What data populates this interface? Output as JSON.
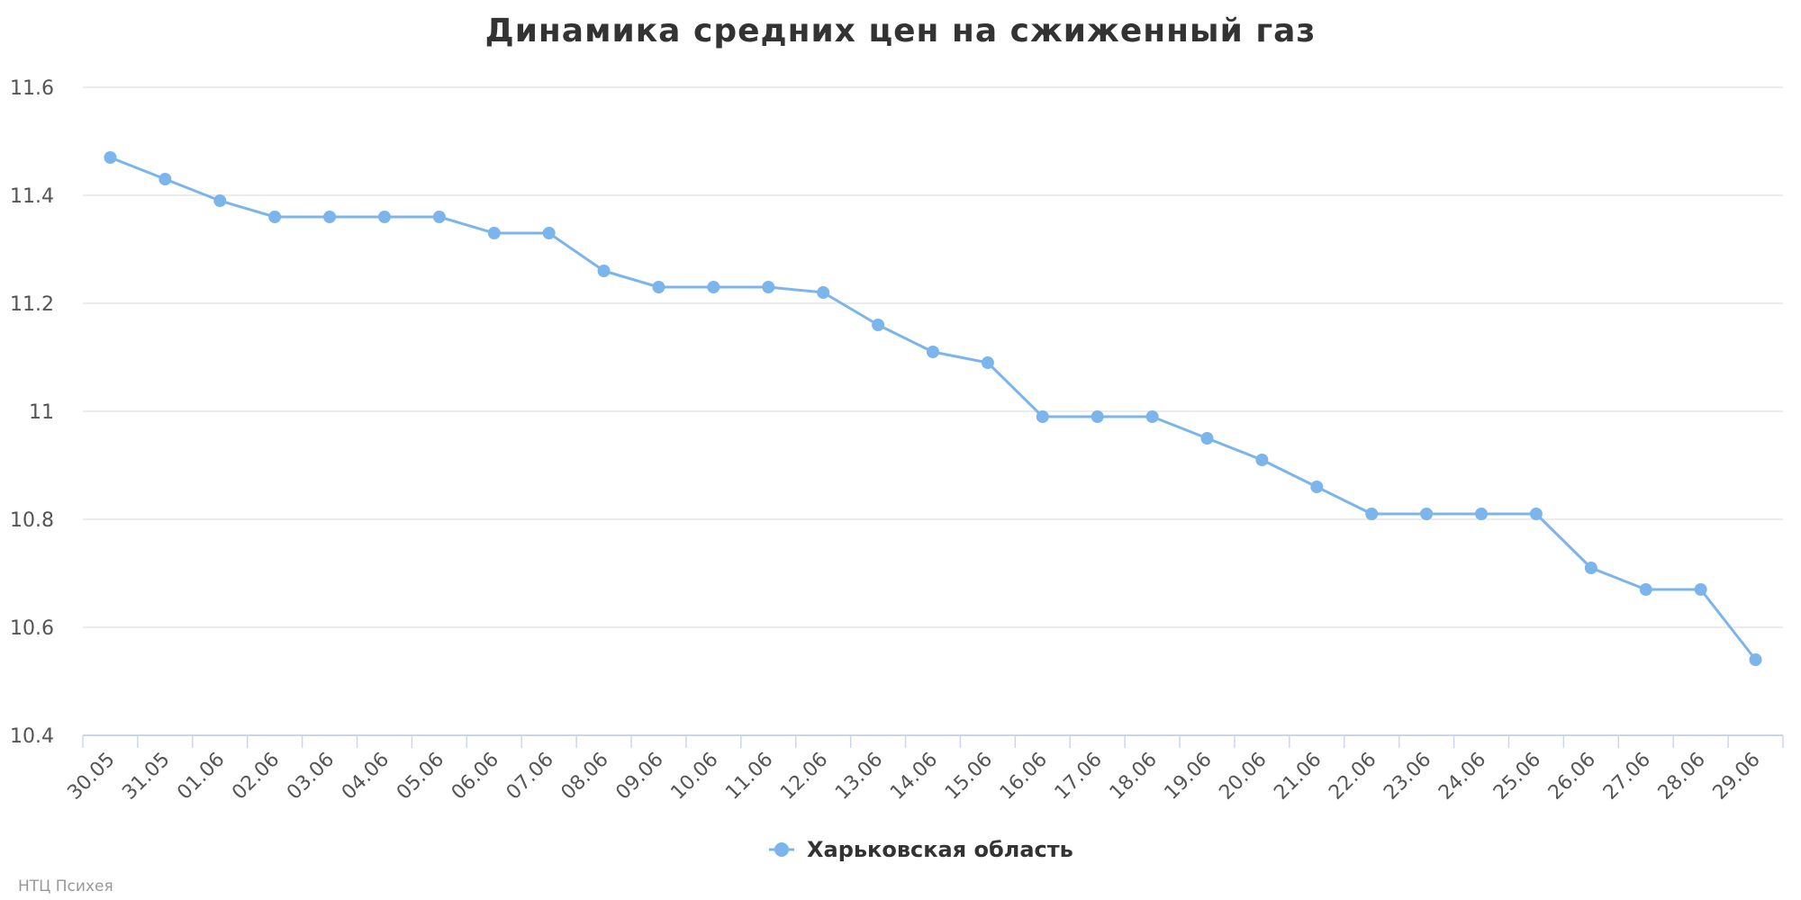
{
  "chart_data": {
    "type": "line",
    "title": "Динамика средних цен на сжиженный газ",
    "xlabel": "",
    "ylabel": "",
    "categories": [
      "30.05",
      "31.05",
      "01.06",
      "02.06",
      "03.06",
      "04.06",
      "05.06",
      "06.06",
      "07.06",
      "08.06",
      "09.06",
      "10.06",
      "11.06",
      "12.06",
      "13.06",
      "14.06",
      "15.06",
      "16.06",
      "17.06",
      "18.06",
      "19.06",
      "20.06",
      "21.06",
      "22.06",
      "23.06",
      "24.06",
      "25.06",
      "26.06",
      "27.06",
      "28.06",
      "29.06"
    ],
    "series": [
      {
        "name": "Харьковская область",
        "color": "#7cb5ec",
        "values": [
          11.47,
          11.43,
          11.39,
          11.36,
          11.36,
          11.36,
          11.36,
          11.33,
          11.33,
          11.26,
          11.23,
          11.23,
          11.23,
          11.22,
          11.16,
          11.11,
          11.09,
          10.99,
          10.99,
          10.99,
          10.95,
          10.91,
          10.86,
          10.81,
          10.81,
          10.81,
          10.81,
          10.71,
          10.67,
          10.67,
          10.54
        ]
      }
    ],
    "ylim": [
      10.4,
      11.6
    ],
    "yticks": [
      10.4,
      10.6,
      10.8,
      11,
      11.2,
      11.4,
      11.6
    ],
    "ytick_labels": [
      "10.4",
      "10.6",
      "10.8",
      "11",
      "11.2",
      "11.4",
      "11.6"
    ],
    "grid": true,
    "legend_position": "bottom-center"
  },
  "credit": "НТЦ Психея",
  "colors": {
    "line": "#7cb5ec",
    "grid": "#e6e6e6",
    "axis": "#ccd6eb",
    "text": "#333333"
  }
}
